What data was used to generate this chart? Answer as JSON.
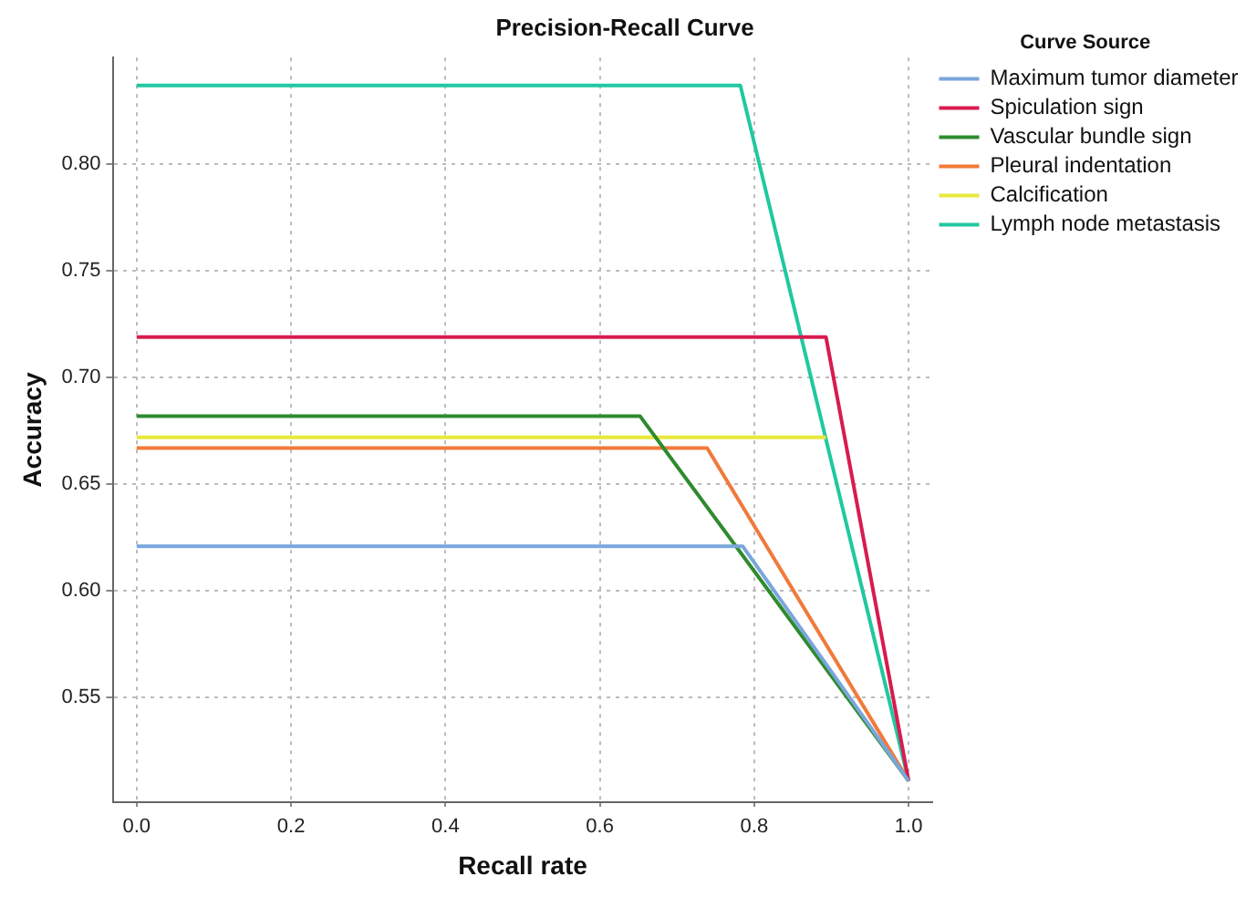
{
  "chart_data": {
    "type": "line",
    "title": "Precision-Recall Curve",
    "xlabel": "Recall rate",
    "ylabel": "Accuracy",
    "legend_title": "Curve Source",
    "legend": "right",
    "grid": true,
    "marker": "none",
    "xlim": [
      -0.03,
      1.03
    ],
    "ylim": [
      0.501,
      0.85
    ],
    "xticks": [
      {
        "value": 0,
        "label": "0.0"
      },
      {
        "value": 0.2,
        "label": "0.2"
      },
      {
        "value": 0.4,
        "label": "0.4"
      },
      {
        "value": 0.6,
        "label": "0.6"
      },
      {
        "value": 0.8,
        "label": "0.8"
      },
      {
        "value": 1,
        "label": "1.0"
      }
    ],
    "yticks": [
      {
        "value": 0.55,
        "label": "0.55"
      },
      {
        "value": 0.6,
        "label": "0.60"
      },
      {
        "value": 0.65,
        "label": "0.65"
      },
      {
        "value": 0.7,
        "label": "0.70"
      },
      {
        "value": 0.75,
        "label": "0.75"
      },
      {
        "value": 0.8,
        "label": "0.80"
      }
    ],
    "series": [
      {
        "name": "Maximum tumor diameter",
        "color": "#7aa6dc",
        "x": [
          0,
          0.785,
          1
        ],
        "values": [
          0.621,
          0.621,
          0.511
        ]
      },
      {
        "name": "Spiculation sign",
        "color": "#d81b4f",
        "x": [
          0,
          0.893,
          1
        ],
        "values": [
          0.719,
          0.719,
          0.511
        ]
      },
      {
        "name": "Vascular bundle sign",
        "color": "#2e8b2e",
        "x": [
          0,
          0.652,
          1
        ],
        "values": [
          0.682,
          0.682,
          0.511
        ]
      },
      {
        "name": "Pleural indentation",
        "color": "#f07a3a",
        "x": [
          0,
          0.739,
          1
        ],
        "values": [
          0.667,
          0.667,
          0.511
        ]
      },
      {
        "name": "Calcification",
        "color": "#e8e83a",
        "x": [
          0,
          0.893
        ],
        "values": [
          0.672,
          0.672
        ]
      },
      {
        "name": "Lymph node metastasis",
        "color": "#20c8a0",
        "x": [
          0,
          0.782,
          1
        ],
        "values": [
          0.837,
          0.837,
          0.511
        ]
      }
    ]
  }
}
